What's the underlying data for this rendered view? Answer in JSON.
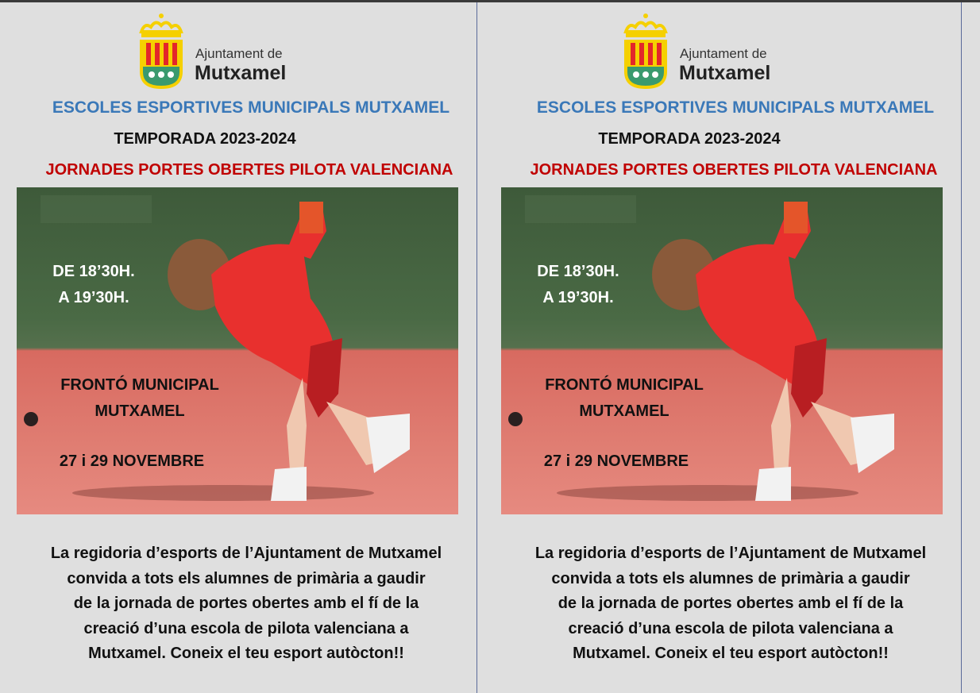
{
  "logo": {
    "line1": "Ajuntament de",
    "line2": "Mutxamel",
    "colors": {
      "gold": "#f5d000",
      "red": "#e3262a",
      "green": "#3a9a6e"
    }
  },
  "flyers": [
    {
      "title": "ESCOLES ESPORTIVES MUNICIPALS MUTXAMEL",
      "season": "TEMPORADA 2023-2024",
      "event": "JORNADES PORTES OBERTES PILOTA VALENCIANA",
      "time_line1": "DE 18’30H.",
      "time_line2": "A 19’30H.",
      "venue_line1": "FRONTÓ MUNICIPAL",
      "venue_line2": "MUTXAMEL",
      "dates": "27 i 29 NOVEMBRE",
      "body": [
        "La regidoria d’esports de l’Ajuntament de Mutxamel",
        "convida a tots els alumnes de primària a gaudir",
        "de la jornada de portes obertes amb el fí de la",
        "creació d’una escola de pilota valenciana a",
        "Mutxamel. Coneix el teu esport autòcton!!"
      ]
    },
    {
      "title": "ESCOLES ESPORTIVES MUNICIPALS MUTXAMEL",
      "season": "TEMPORADA 2023-2024",
      "event": "JORNADES PORTES OBERTES PILOTA VALENCIANA",
      "time_line1": "DE 18’30H.",
      "time_line2": "A 19’30H.",
      "venue_line1": "FRONTÓ MUNICIPAL",
      "venue_line2": "MUTXAMEL",
      "dates": "27 i 29 NOVEMBRE",
      "body": [
        "La regidoria d’esports de l’Ajuntament de Mutxamel",
        "convida a tots els alumnes de primària a gaudir",
        "de la jornada de portes obertes amb el fí de la",
        "creació d’una escola de pilota valenciana a",
        "Mutxamel. Coneix el teu esport autòcton!!"
      ]
    }
  ]
}
